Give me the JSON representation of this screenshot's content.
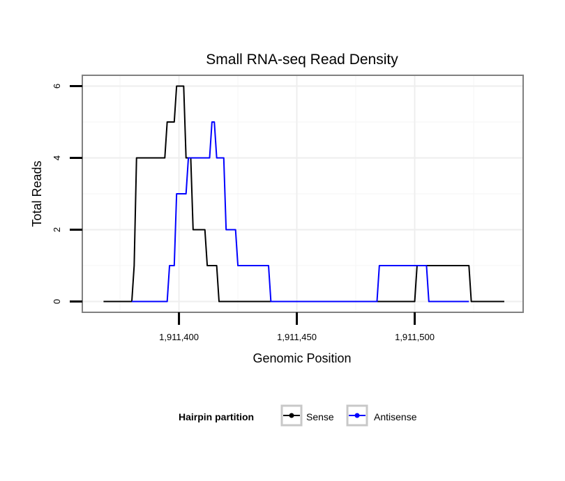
{
  "chart_data": {
    "type": "line",
    "title": "Small RNA-seq Read Density",
    "xlabel": "Genomic Position",
    "ylabel": "Total Reads",
    "xlim": [
      1911359,
      1911546
    ],
    "ylim": [
      -0.3,
      6.3
    ],
    "x_ticks": [
      1911400,
      1911450,
      1911500
    ],
    "x_tick_labels": [
      "1,911,400",
      "1,911,450",
      "1,911,500"
    ],
    "x_minor_ticks": [
      1911375,
      1911425,
      1911475,
      1911525
    ],
    "y_ticks": [
      0,
      2,
      4,
      6
    ],
    "y_tick_labels": [
      "0",
      "2",
      "4",
      "6"
    ],
    "y_minor_ticks": [
      1,
      3,
      5
    ],
    "grid": true,
    "legend": {
      "title": "Hairpin partition",
      "position": "bottom",
      "entries": [
        "Sense",
        "Antisense"
      ]
    },
    "series": [
      {
        "name": "Sense",
        "color": "#000000",
        "x": [
          1911368,
          1911380,
          1911381,
          1911382,
          1911394,
          1911395,
          1911398,
          1911399,
          1911402,
          1911403,
          1911405,
          1911406,
          1911411,
          1911412,
          1911416,
          1911417,
          1911500,
          1911501,
          1911523,
          1911524,
          1911538
        ],
        "y": [
          0,
          0,
          1,
          4,
          4,
          5,
          5,
          6,
          6,
          4,
          4,
          2,
          2,
          1,
          1,
          0,
          0,
          1,
          1,
          0,
          0
        ]
      },
      {
        "name": "Antisense",
        "color": "#0000ff",
        "x": [
          1911380,
          1911395,
          1911396,
          1911398,
          1911399,
          1911403,
          1911404,
          1911413,
          1911414,
          1911415,
          1911416,
          1911419,
          1911420,
          1911424,
          1911425,
          1911438,
          1911439,
          1911484,
          1911485,
          1911505,
          1911506,
          1911523
        ],
        "y": [
          0,
          0,
          1,
          1,
          3,
          3,
          4,
          4,
          5,
          5,
          4,
          4,
          2,
          2,
          1,
          1,
          0,
          0,
          1,
          1,
          0,
          0
        ]
      }
    ]
  }
}
